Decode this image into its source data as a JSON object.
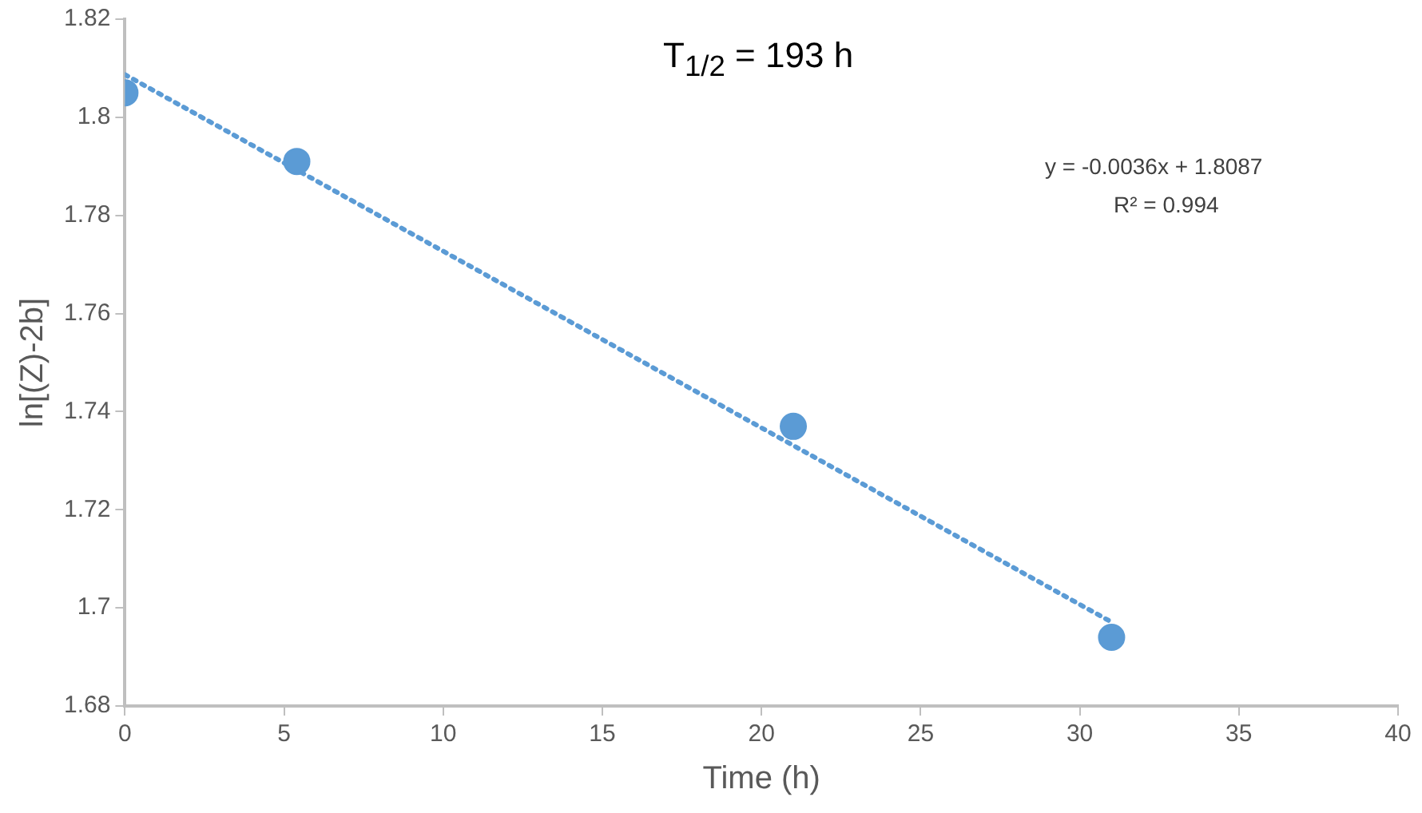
{
  "chart_data": {
    "type": "scatter",
    "xlabel": "Time (h)",
    "ylabel": "ln[(Z)-2b]",
    "xlim": [
      0,
      40
    ],
    "xticks": [
      0,
      5,
      10,
      15,
      20,
      25,
      30,
      35,
      40
    ],
    "ylim": [
      1.68,
      1.82
    ],
    "yticks": [
      1.68,
      1.7,
      1.72,
      1.74,
      1.76,
      1.78,
      1.8,
      1.82
    ],
    "grid": false,
    "legend": false,
    "annotations": [
      "T$_{1/2}$ = 193 h",
      "y = -0.0036x + 1.8087",
      "R² = 0.994"
    ],
    "series": [
      {
        "type": "scatter",
        "color": "#5b9bd5",
        "marker": "circle",
        "x": [
          0,
          5.4,
          21,
          31
        ],
        "values": [
          1.805,
          1.791,
          1.737,
          1.694
        ]
      },
      {
        "type": "line",
        "color": "#5b9bd5",
        "marker": "none",
        "line_style": "dotted",
        "x": [
          0,
          31
        ],
        "values": [
          1.8087,
          1.6971
        ]
      }
    ]
  }
}
